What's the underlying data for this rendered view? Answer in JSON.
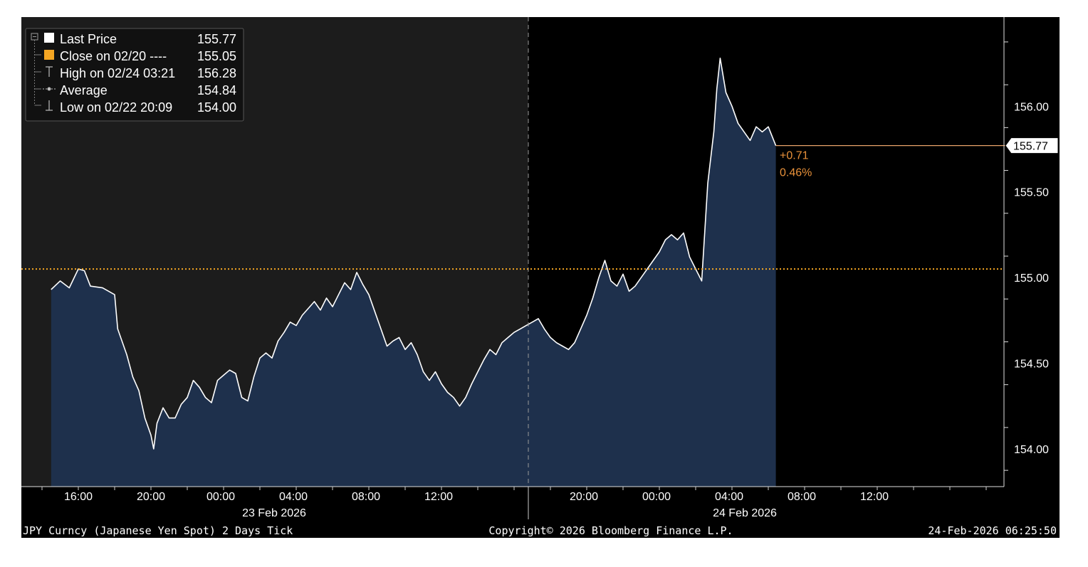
{
  "legend": {
    "items": [
      {
        "label": "Last Price",
        "value": "155.77",
        "icon": "white-square-icon"
      },
      {
        "label": "Close on 02/20 ----",
        "value": "155.05",
        "icon": "orange-square-icon"
      },
      {
        "label": "High on 02/24 03:21",
        "value": "156.28",
        "icon": "high-marker-icon"
      },
      {
        "label": "Average",
        "value": "154.84",
        "icon": "average-marker-icon"
      },
      {
        "label": "Low on 02/22 20:09",
        "value": "154.00",
        "icon": "low-marker-icon"
      }
    ]
  },
  "last_price_tag": "155.77",
  "change_abs": "+0.71",
  "change_pct": "0.46%",
  "footer": {
    "left": "JPY Curncy (Japanese Yen Spot) 2 Days Tick",
    "center": "Copyright© 2026 Bloomberg Finance L.P.",
    "right": "24-Feb-2026 06:25:50"
  },
  "colors": {
    "background_prev_session": "#1c1c1c",
    "background_current_session": "#000000",
    "area_fill": "#1e304c",
    "price_line": "#ffffff",
    "close_line": "#f5a623",
    "change_text": "#e8913a"
  },
  "chart_data": {
    "type": "line",
    "title": "",
    "xlabel": "",
    "ylabel": "",
    "ylim": [
      153.78,
      156.52
    ],
    "y_ticks": [
      "154.00",
      "154.50",
      "155.00",
      "155.50",
      "156.00"
    ],
    "x_tick_labels": [
      "16:00",
      "20:00",
      "00:00",
      "04:00",
      "08:00",
      "12:00",
      "20:00",
      "00:00",
      "04:00",
      "08:00",
      "12:00"
    ],
    "date_labels": [
      "23 Feb 2026",
      "24 Feb 2026"
    ],
    "previous_close": 155.05,
    "last_price": 155.77,
    "grid": false,
    "legend_position": "top-left",
    "series": [
      {
        "name": "Last Price",
        "points": [
          [
            "02/22 14:30",
            154.93
          ],
          [
            "02/22 15:00",
            154.98
          ],
          [
            "02/22 15:30",
            154.94
          ],
          [
            "02/22 16:00",
            155.05
          ],
          [
            "02/22 16:20",
            155.04
          ],
          [
            "02/22 16:40",
            154.95
          ],
          [
            "02/22 17:20",
            154.94
          ],
          [
            "02/22 18:00",
            154.9
          ],
          [
            "02/22 18:10",
            154.7
          ],
          [
            "02/22 18:40",
            154.55
          ],
          [
            "02/22 19:00",
            154.42
          ],
          [
            "02/22 19:20",
            154.34
          ],
          [
            "02/22 19:40",
            154.18
          ],
          [
            "02/22 20:00",
            154.08
          ],
          [
            "02/22 20:09",
            154.0
          ],
          [
            "02/22 20:20",
            154.15
          ],
          [
            "02/22 20:40",
            154.24
          ],
          [
            "02/22 21:00",
            154.18
          ],
          [
            "02/22 21:20",
            154.18
          ],
          [
            "02/22 21:40",
            154.26
          ],
          [
            "02/22 22:00",
            154.3
          ],
          [
            "02/22 22:20",
            154.4
          ],
          [
            "02/22 22:40",
            154.36
          ],
          [
            "02/22 23:00",
            154.3
          ],
          [
            "02/22 23:20",
            154.27
          ],
          [
            "02/22 23:40",
            154.4
          ],
          [
            "02/23 00:00",
            154.43
          ],
          [
            "02/23 00:20",
            154.46
          ],
          [
            "02/23 00:40",
            154.44
          ],
          [
            "02/23 01:00",
            154.3
          ],
          [
            "02/23 01:20",
            154.28
          ],
          [
            "02/23 01:40",
            154.42
          ],
          [
            "02/23 02:00",
            154.53
          ],
          [
            "02/23 02:20",
            154.56
          ],
          [
            "02/23 02:40",
            154.53
          ],
          [
            "02/23 03:00",
            154.63
          ],
          [
            "02/23 03:20",
            154.68
          ],
          [
            "02/23 03:40",
            154.74
          ],
          [
            "02/23 04:00",
            154.72
          ],
          [
            "02/23 04:20",
            154.78
          ],
          [
            "02/23 04:40",
            154.82
          ],
          [
            "02/23 05:00",
            154.86
          ],
          [
            "02/23 05:20",
            154.81
          ],
          [
            "02/23 05:40",
            154.88
          ],
          [
            "02/23 06:00",
            154.83
          ],
          [
            "02/23 06:20",
            154.9
          ],
          [
            "02/23 06:40",
            154.97
          ],
          [
            "02/23 07:00",
            154.93
          ],
          [
            "02/23 07:20",
            155.03
          ],
          [
            "02/23 07:40",
            154.96
          ],
          [
            "02/23 08:00",
            154.9
          ],
          [
            "02/23 08:20",
            154.8
          ],
          [
            "02/23 08:40",
            154.7
          ],
          [
            "02/23 09:00",
            154.6
          ],
          [
            "02/23 09:20",
            154.63
          ],
          [
            "02/23 09:40",
            154.65
          ],
          [
            "02/23 10:00",
            154.58
          ],
          [
            "02/23 10:20",
            154.62
          ],
          [
            "02/23 10:40",
            154.55
          ],
          [
            "02/23 11:00",
            154.45
          ],
          [
            "02/23 11:20",
            154.4
          ],
          [
            "02/23 11:40",
            154.45
          ],
          [
            "02/23 12:00",
            154.38
          ],
          [
            "02/23 12:20",
            154.33
          ],
          [
            "02/23 12:40",
            154.3
          ],
          [
            "02/23 13:00",
            154.25
          ],
          [
            "02/23 13:20",
            154.3
          ],
          [
            "02/23 13:40",
            154.38
          ],
          [
            "02/23 14:00",
            154.45
          ],
          [
            "02/23 14:20",
            154.52
          ],
          [
            "02/23 14:40",
            154.58
          ],
          [
            "02/23 15:00",
            154.55
          ],
          [
            "02/23 15:20",
            154.62
          ],
          [
            "02/23 15:40",
            154.65
          ],
          [
            "02/23 16:00",
            154.68
          ],
          [
            "02/23 16:20",
            154.7
          ],
          [
            "02/23 16:40",
            154.72
          ],
          [
            "02/23 17:00",
            154.74
          ],
          [
            "02/23 17:20",
            154.76
          ],
          [
            "02/23 17:40",
            154.7
          ],
          [
            "02/23 18:00",
            154.65
          ],
          [
            "02/23 18:20",
            154.62
          ],
          [
            "02/23 18:40",
            154.6
          ],
          [
            "02/23 19:00",
            154.58
          ],
          [
            "02/23 19:20",
            154.62
          ],
          [
            "02/23 19:40",
            154.7
          ],
          [
            "02/23 20:00",
            154.78
          ],
          [
            "02/23 20:20",
            154.88
          ],
          [
            "02/23 20:40",
            155.0
          ],
          [
            "02/23 21:00",
            155.1
          ],
          [
            "02/23 21:20",
            154.98
          ],
          [
            "02/23 21:40",
            154.95
          ],
          [
            "02/23 22:00",
            155.02
          ],
          [
            "02/23 22:20",
            154.92
          ],
          [
            "02/23 22:40",
            154.95
          ],
          [
            "02/23 23:00",
            155.0
          ],
          [
            "02/23 23:20",
            155.05
          ],
          [
            "02/23 23:40",
            155.1
          ],
          [
            "02/24 00:00",
            155.15
          ],
          [
            "02/24 00:20",
            155.22
          ],
          [
            "02/24 00:40",
            155.25
          ],
          [
            "02/24 01:00",
            155.22
          ],
          [
            "02/24 01:20",
            155.26
          ],
          [
            "02/24 01:40",
            155.12
          ],
          [
            "02/24 02:00",
            155.05
          ],
          [
            "02/24 02:20",
            154.98
          ],
          [
            "02/24 02:40",
            155.55
          ],
          [
            "02/24 03:00",
            155.85
          ],
          [
            "02/24 03:10",
            156.1
          ],
          [
            "02/24 03:21",
            156.28
          ],
          [
            "02/24 03:40",
            156.08
          ],
          [
            "02/24 04:00",
            156.0
          ],
          [
            "02/24 04:20",
            155.9
          ],
          [
            "02/24 04:40",
            155.85
          ],
          [
            "02/24 05:00",
            155.8
          ],
          [
            "02/24 05:20",
            155.88
          ],
          [
            "02/24 05:40",
            155.85
          ],
          [
            "02/24 06:00",
            155.88
          ],
          [
            "02/24 06:25",
            155.77
          ]
        ]
      }
    ]
  }
}
